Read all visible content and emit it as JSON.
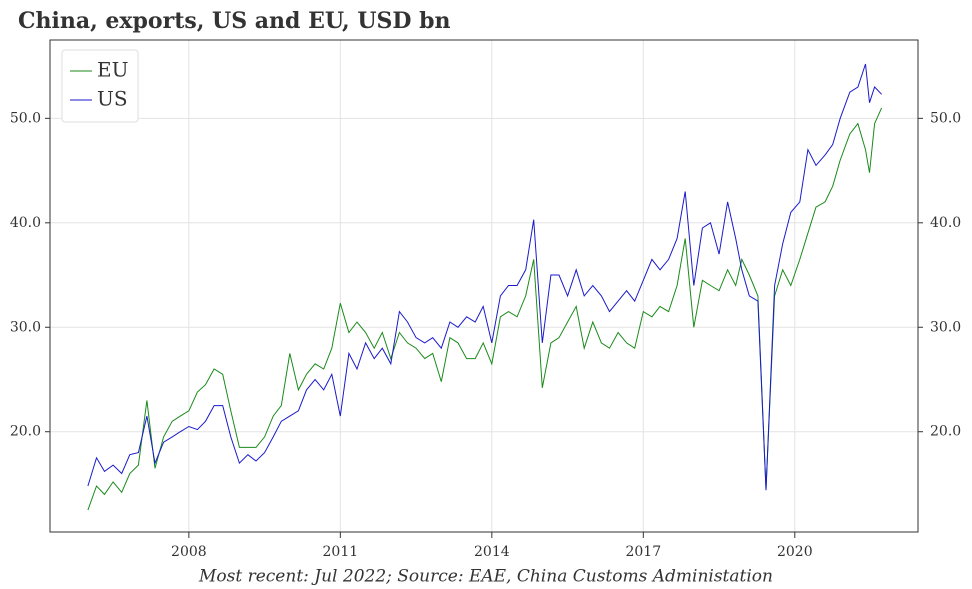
{
  "chart_data": {
    "type": "line",
    "title": "China, exports, US and EU, USD bn",
    "footnote": "Most recent: Jul 2022; Source: EAE, China Customs Administation",
    "x": [
      2006.0,
      2006.17,
      2006.33,
      2006.5,
      2006.67,
      2006.83,
      2007.0,
      2007.17,
      2007.33,
      2007.5,
      2007.67,
      2007.83,
      2008.0,
      2008.17,
      2008.33,
      2008.5,
      2008.67,
      2008.83,
      2009.0,
      2009.17,
      2009.33,
      2009.5,
      2009.67,
      2009.83,
      2010.0,
      2010.17,
      2010.33,
      2010.5,
      2010.67,
      2010.83,
      2011.0,
      2011.17,
      2011.33,
      2011.5,
      2011.67,
      2011.83,
      2012.0,
      2012.17,
      2012.33,
      2012.5,
      2012.67,
      2012.83,
      2013.0,
      2013.17,
      2013.33,
      2013.5,
      2013.67,
      2013.83,
      2014.0,
      2014.17,
      2014.33,
      2014.5,
      2014.67,
      2014.83,
      2015.0,
      2015.17,
      2015.33,
      2015.5,
      2015.67,
      2015.83,
      2016.0,
      2016.17,
      2016.33,
      2016.5,
      2016.67,
      2016.83,
      2017.0,
      2017.17,
      2017.33,
      2017.5,
      2017.67,
      2017.83,
      2018.0,
      2018.17,
      2018.33,
      2018.5,
      2018.67,
      2018.83,
      2018.95,
      2019.1,
      2019.27,
      2019.43,
      2019.6,
      2019.76,
      2019.92,
      2020.1,
      2020.26,
      2020.42,
      2020.6,
      2020.75,
      2020.9,
      2021.09,
      2021.25,
      2021.4,
      2021.48,
      2021.58,
      2021.72
    ],
    "series": [
      {
        "name": "EU",
        "color": "#1a8a1a",
        "values": [
          12.5,
          14.8,
          14.0,
          15.2,
          14.2,
          16.0,
          16.8,
          23.0,
          16.5,
          19.5,
          21.0,
          21.5,
          22.0,
          23.8,
          24.5,
          26.0,
          25.5,
          22.0,
          18.5,
          18.5,
          18.5,
          19.5,
          21.5,
          22.5,
          27.5,
          24.0,
          25.5,
          26.5,
          26.0,
          28.0,
          32.3,
          29.5,
          30.5,
          29.5,
          28.0,
          29.5,
          27.0,
          29.5,
          28.5,
          28.0,
          27.0,
          27.5,
          24.8,
          29.0,
          28.5,
          27.0,
          27.0,
          28.5,
          26.5,
          31.0,
          31.5,
          31.0,
          33.0,
          36.5,
          24.2,
          28.5,
          29.0,
          30.5,
          32.0,
          28.0,
          30.5,
          28.5,
          28.0,
          29.5,
          28.5,
          28.0,
          31.5,
          31.0,
          32.0,
          31.5,
          34.0,
          38.5,
          30.0,
          34.5,
          34.0,
          33.5,
          35.5,
          34.0,
          36.5,
          35.0,
          33.0,
          14.5,
          33.0,
          35.5,
          34.0,
          36.5,
          39.0,
          41.5,
          42.0,
          43.5,
          46.0,
          48.5,
          49.5,
          47.0,
          44.8,
          49.5,
          51.0
        ]
      },
      {
        "name": "US",
        "color": "#1a1acc",
        "values": [
          14.8,
          17.5,
          16.2,
          16.8,
          16.0,
          17.8,
          18.0,
          21.5,
          17.0,
          19.0,
          19.5,
          20.0,
          20.5,
          20.2,
          21.0,
          22.5,
          22.5,
          19.5,
          17.0,
          17.8,
          17.2,
          18.0,
          19.5,
          21.0,
          21.5,
          22.0,
          24.0,
          25.0,
          24.0,
          25.5,
          21.5,
          27.5,
          26.0,
          28.5,
          27.0,
          28.0,
          26.5,
          31.5,
          30.5,
          29.0,
          28.5,
          29.0,
          28.0,
          30.5,
          30.0,
          31.0,
          30.5,
          32.0,
          28.5,
          33.0,
          34.0,
          34.0,
          35.5,
          40.3,
          28.5,
          35.0,
          35.0,
          33.0,
          35.5,
          33.0,
          34.0,
          33.0,
          31.5,
          32.5,
          33.5,
          32.5,
          34.5,
          36.5,
          35.5,
          36.5,
          38.5,
          43.0,
          34.0,
          39.5,
          40.0,
          37.0,
          42.0,
          38.5,
          35.5,
          33.0,
          32.5,
          14.4,
          34.0,
          38.0,
          41.0,
          42.0,
          47.0,
          45.5,
          46.5,
          47.5,
          50.0,
          52.5,
          53.0,
          55.2,
          51.5,
          53.0,
          52.3
        ]
      }
    ],
    "xlim": [
      2005.25,
      2022.44
    ],
    "xticks": [
      2008,
      2011,
      2014,
      2017,
      2020
    ],
    "ylim": [
      10.4,
      57.5
    ],
    "yticks": [
      {
        "value": 20,
        "label": "20.0"
      },
      {
        "value": 30,
        "label": "30.0"
      },
      {
        "value": 40,
        "label": "40.0"
      },
      {
        "value": 50,
        "label": "50.0"
      }
    ],
    "grid": true,
    "legend": "upper left"
  }
}
